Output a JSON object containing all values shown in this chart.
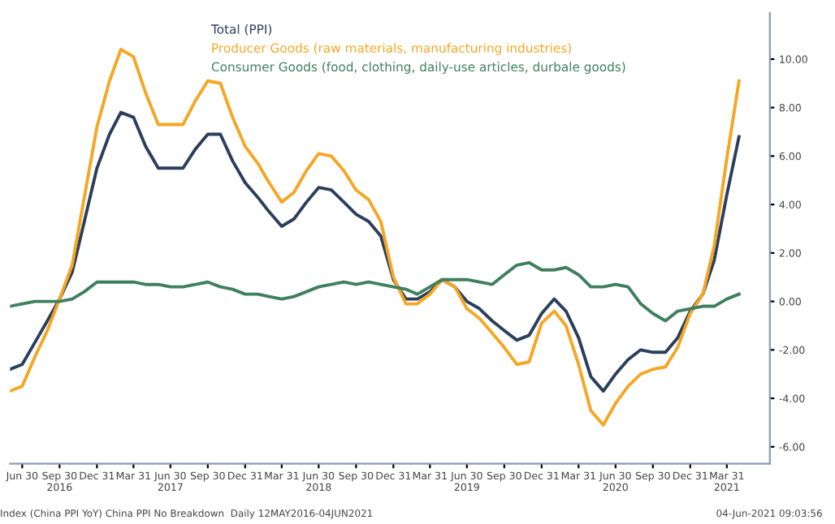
{
  "chart_data": {
    "type": "line",
    "x": [
      "2016-05-31",
      "2016-06-30",
      "2016-07-31",
      "2016-08-31",
      "2016-09-30",
      "2016-10-31",
      "2016-11-30",
      "2016-12-31",
      "2017-01-31",
      "2017-02-28",
      "2017-03-31",
      "2017-04-30",
      "2017-05-31",
      "2017-06-30",
      "2017-07-31",
      "2017-08-31",
      "2017-09-30",
      "2017-10-31",
      "2017-11-30",
      "2017-12-31",
      "2018-01-31",
      "2018-02-28",
      "2018-03-31",
      "2018-04-30",
      "2018-05-31",
      "2018-06-30",
      "2018-07-31",
      "2018-08-31",
      "2018-09-30",
      "2018-10-31",
      "2018-11-30",
      "2018-12-31",
      "2019-01-31",
      "2019-02-28",
      "2019-03-31",
      "2019-04-30",
      "2019-05-31",
      "2019-06-30",
      "2019-07-31",
      "2019-08-31",
      "2019-09-30",
      "2019-10-31",
      "2019-11-30",
      "2019-12-31",
      "2020-01-31",
      "2020-02-29",
      "2020-03-31",
      "2020-04-30",
      "2020-05-31",
      "2020-06-30",
      "2020-07-31",
      "2020-08-31",
      "2020-09-30",
      "2020-10-31",
      "2020-11-30",
      "2020-12-31",
      "2021-01-31",
      "2021-02-28",
      "2021-03-31",
      "2021-04-30"
    ],
    "series": [
      {
        "name": "Total (PPI)",
        "color": "#2b3f5c",
        "values": [
          -2.8,
          -2.6,
          -1.7,
          -0.8,
          0.1,
          1.2,
          3.3,
          5.5,
          6.9,
          7.8,
          7.6,
          6.4,
          5.5,
          5.5,
          5.5,
          6.3,
          6.9,
          6.9,
          5.8,
          4.9,
          4.3,
          3.7,
          3.1,
          3.4,
          4.1,
          4.7,
          4.6,
          4.1,
          3.6,
          3.3,
          2.7,
          0.9,
          0.1,
          0.1,
          0.4,
          0.9,
          0.6,
          0.0,
          -0.3,
          -0.8,
          -1.2,
          -1.6,
          -1.4,
          -0.5,
          0.1,
          -0.4,
          -1.5,
          -3.1,
          -3.7,
          -3.0,
          -2.4,
          -2.0,
          -2.1,
          -2.1,
          -1.5,
          -0.4,
          0.3,
          1.7,
          4.4,
          6.8
        ]
      },
      {
        "name": "Producer Goods (raw materials, manufacturing industries)",
        "color": "#f5a623",
        "values": [
          -3.7,
          -3.5,
          -2.3,
          -1.2,
          0.1,
          1.5,
          4.3,
          7.2,
          9.1,
          10.4,
          10.1,
          8.6,
          7.3,
          7.3,
          7.3,
          8.3,
          9.1,
          9.0,
          7.6,
          6.4,
          5.7,
          4.9,
          4.1,
          4.5,
          5.4,
          6.1,
          6.0,
          5.4,
          4.6,
          4.2,
          3.3,
          1.0,
          -0.1,
          -0.1,
          0.3,
          0.9,
          0.6,
          -0.3,
          -0.7,
          -1.3,
          -1.9,
          -2.6,
          -2.5,
          -0.9,
          -0.4,
          -1.0,
          -2.6,
          -4.5,
          -5.1,
          -4.2,
          -3.5,
          -3.0,
          -2.8,
          -2.7,
          -1.9,
          -0.5,
          0.3,
          2.3,
          5.9,
          9.1
        ]
      },
      {
        "name": "Consumer Goods (food, clothing, daily-use articles, durbale goods)",
        "color": "#3f7f5f",
        "values": [
          -0.2,
          -0.1,
          0.0,
          0.0,
          0.0,
          0.1,
          0.4,
          0.8,
          0.8,
          0.8,
          0.8,
          0.7,
          0.7,
          0.6,
          0.6,
          0.7,
          0.8,
          0.6,
          0.5,
          0.3,
          0.3,
          0.2,
          0.1,
          0.2,
          0.4,
          0.6,
          0.7,
          0.8,
          0.7,
          0.8,
          0.7,
          0.6,
          0.5,
          0.3,
          0.6,
          0.9,
          0.9,
          0.9,
          0.8,
          0.7,
          1.1,
          1.5,
          1.6,
          1.3,
          1.3,
          1.4,
          1.1,
          0.6,
          0.6,
          0.7,
          0.6,
          -0.1,
          -0.5,
          -0.8,
          -0.4,
          -0.3,
          -0.2,
          -0.2,
          0.1,
          0.3
        ]
      }
    ],
    "xlim": [
      "2016-05-31",
      "2021-07-15"
    ],
    "xticks": [
      {
        "value": "2016-06-30",
        "label": "Jun 30"
      },
      {
        "value": "2016-09-30",
        "label": "Sep 30\n2016"
      },
      {
        "value": "2016-12-31",
        "label": "Dec 31"
      },
      {
        "value": "2017-03-31",
        "label": "Mar 31"
      },
      {
        "value": "2017-06-30",
        "label": "Jun 30\n2017"
      },
      {
        "value": "2017-09-30",
        "label": "Sep 30"
      },
      {
        "value": "2017-12-31",
        "label": "Dec 31"
      },
      {
        "value": "2018-03-31",
        "label": "Mar 31"
      },
      {
        "value": "2018-06-30",
        "label": "Jun 30\n2018"
      },
      {
        "value": "2018-09-30",
        "label": "Sep 30"
      },
      {
        "value": "2018-12-31",
        "label": "Dec 31"
      },
      {
        "value": "2019-03-31",
        "label": "Mar 31"
      },
      {
        "value": "2019-06-30",
        "label": "Jun 30\n2019"
      },
      {
        "value": "2019-09-30",
        "label": "Sep 30"
      },
      {
        "value": "2019-12-31",
        "label": "Dec 31"
      },
      {
        "value": "2020-03-31",
        "label": "Mar 31"
      },
      {
        "value": "2020-06-30",
        "label": "Jun 30\n2020"
      },
      {
        "value": "2020-09-30",
        "label": "Sep 30"
      },
      {
        "value": "2020-12-31",
        "label": "Dec 31"
      },
      {
        "value": "2021-03-31",
        "label": "Mar 31\n2021"
      }
    ],
    "ylim": [
      -6.7,
      11.9
    ],
    "yticks": [
      {
        "value": -6,
        "label": "-6.00"
      },
      {
        "value": -4,
        "label": "-4.00"
      },
      {
        "value": -2,
        "label": "-2.00"
      },
      {
        "value": 0,
        "label": "0.00"
      },
      {
        "value": 2,
        "label": "2.00"
      },
      {
        "value": 4,
        "label": "4.00"
      },
      {
        "value": 6,
        "label": "6.00"
      },
      {
        "value": 8,
        "label": "8.00"
      },
      {
        "value": 10,
        "label": "10.00"
      }
    ],
    "legend": "top left",
    "grid": false,
    "marker": "none",
    "line_style": "solid",
    "annotations": [
      "Index (China PPI YoY) China PPI No Breakdown  Daily 12MAY2016-04JUN2021",
      "04-Jun-2021 09:03:56"
    ]
  }
}
